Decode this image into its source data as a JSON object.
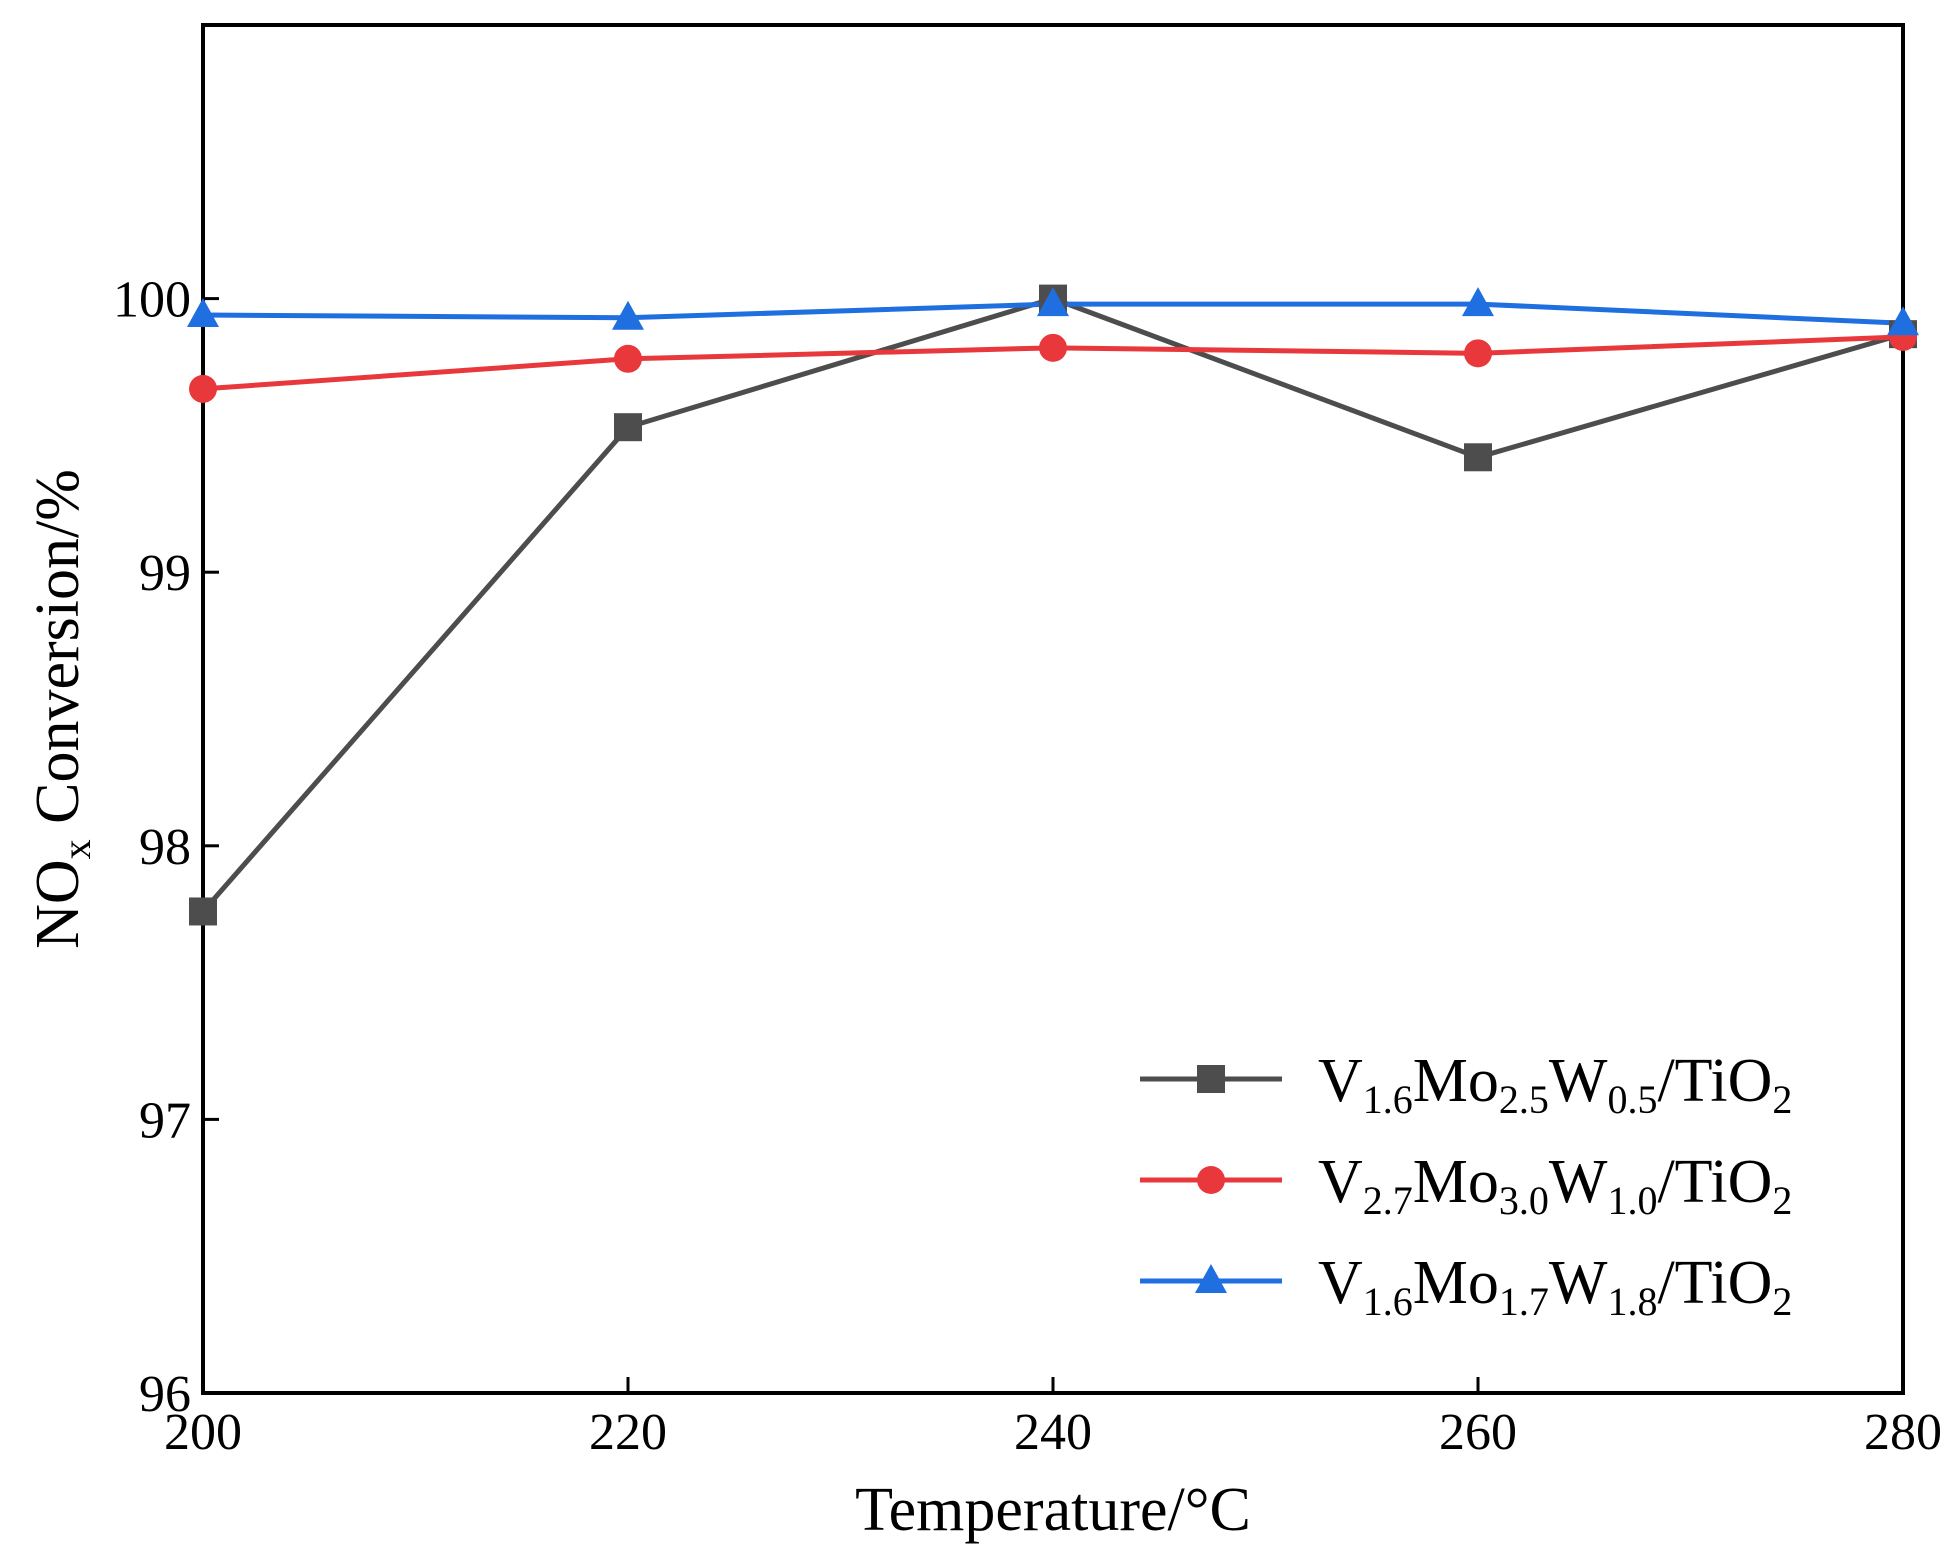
{
  "chart_data": {
    "type": "line",
    "title": "",
    "xlabel": "Temperature/°C",
    "ylabel": {
      "main": "NO",
      "sub": "x",
      "rest": " Conversion/%"
    },
    "xlim": [
      200,
      280
    ],
    "ylim": [
      96,
      101
    ],
    "xticks": [
      200,
      220,
      240,
      260,
      280
    ],
    "yticks": [
      96,
      97,
      98,
      99,
      100
    ],
    "grid": false,
    "legend_position": "bottom-right",
    "x": [
      200,
      220,
      240,
      260,
      280
    ],
    "series": [
      {
        "name": "V1.6Mo2.5W0.5/TiO2",
        "label_parts": [
          [
            "V",
            ""
          ],
          [
            "1.6",
            "sub"
          ],
          [
            "Mo",
            ""
          ],
          [
            "2.5",
            "sub"
          ],
          [
            "W",
            ""
          ],
          [
            "0.5",
            "sub"
          ],
          [
            "/TiO",
            ""
          ],
          [
            "2",
            "sub"
          ]
        ],
        "marker": "square",
        "color": "#4d4d4d",
        "values": [
          97.76,
          99.53,
          100.0,
          99.42,
          99.87
        ]
      },
      {
        "name": "V2.7Mo3.0W1.0/TiO2",
        "label_parts": [
          [
            "V",
            ""
          ],
          [
            "2.7",
            "sub"
          ],
          [
            "Mo",
            ""
          ],
          [
            "3.0",
            "sub"
          ],
          [
            "W",
            ""
          ],
          [
            "1.0",
            "sub"
          ],
          [
            "/TiO",
            ""
          ],
          [
            "2",
            "sub"
          ]
        ],
        "marker": "circle",
        "color": "#e8383b",
        "values": [
          99.67,
          99.78,
          99.82,
          99.8,
          99.86
        ]
      },
      {
        "name": "V1.6Mo1.7W1.8/TiO2",
        "label_parts": [
          [
            "V",
            ""
          ],
          [
            "1.6",
            "sub"
          ],
          [
            "Mo",
            ""
          ],
          [
            "1.7",
            "sub"
          ],
          [
            "W",
            ""
          ],
          [
            "1.8",
            "sub"
          ],
          [
            "/TiO",
            ""
          ],
          [
            "2",
            "sub"
          ]
        ],
        "marker": "triangle",
        "color": "#1f6fe0",
        "values": [
          99.94,
          99.93,
          99.98,
          99.98,
          99.91
        ]
      }
    ]
  }
}
